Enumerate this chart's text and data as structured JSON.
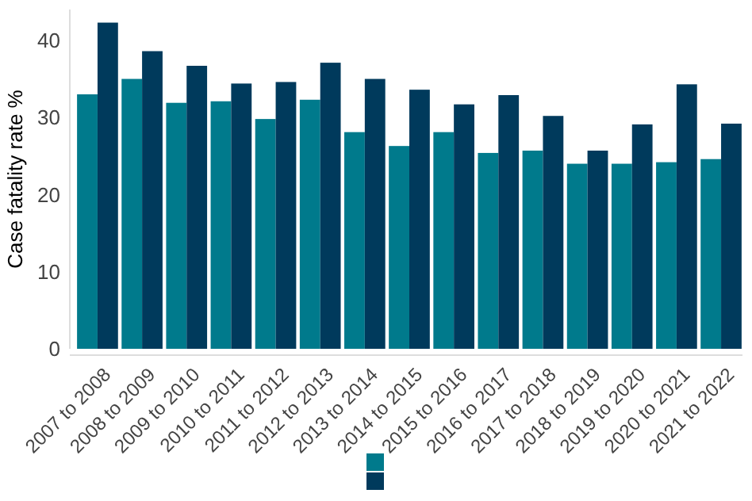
{
  "chart_data": {
    "type": "bar",
    "ylabel": "Case fatality rate %",
    "categories": [
      "2007 to 2008",
      "2008 to 2009",
      "2009 to 2010",
      "2010 to 2011",
      "2011 to 2012",
      "2012 to 2013",
      "2013 to 2014",
      "2014 to 2015",
      "2015 to 2016",
      "2016 to 2017",
      "2017 to 2018",
      "2018 to 2019",
      "2019 to 2020",
      "2020 to 2021",
      "2021 to 2022"
    ],
    "series": [
      {
        "color": "#007a8c",
        "values": [
          33.0,
          35.0,
          31.9,
          32.1,
          29.8,
          32.3,
          28.1,
          26.3,
          28.1,
          25.4,
          25.7,
          24.0,
          24.0,
          24.2,
          24.6
        ]
      },
      {
        "color": "#003a5c",
        "values": [
          42.3,
          38.6,
          36.7,
          34.4,
          34.6,
          37.1,
          35.0,
          33.6,
          31.7,
          32.9,
          30.2,
          25.7,
          29.1,
          34.3,
          29.2
        ]
      }
    ],
    "ylim": [
      0,
      44
    ],
    "yticks": [
      0,
      10,
      20,
      30,
      40
    ],
    "grid": false
  }
}
